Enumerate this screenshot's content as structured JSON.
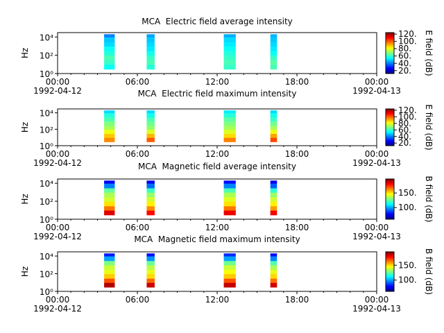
{
  "x_axis": {
    "xlim": [
      0,
      24
    ],
    "xticks": [
      {
        "value": 0,
        "label": "00:00"
      },
      {
        "value": 6,
        "label": "06:00"
      },
      {
        "value": 12,
        "label": "12:00"
      },
      {
        "value": 18,
        "label": "18:00"
      },
      {
        "value": 24,
        "label": "00:00"
      }
    ],
    "xminorticks": [
      1,
      2,
      3,
      4,
      5,
      7,
      8,
      9,
      10,
      11,
      13,
      14,
      15,
      16,
      17,
      19,
      20,
      21,
      22,
      23
    ],
    "date_labels": [
      {
        "value": 0,
        "label": "1992-04-12"
      },
      {
        "value": 24,
        "label": "1992-04-13"
      }
    ]
  },
  "chart_data": [
    {
      "type": "spectrogram",
      "title": "MCA  Electric field average intensity",
      "y_label": "Hz",
      "colorbar_label": "E field (dB)",
      "log_y": true,
      "colormap": "jet",
      "ylim": [
        1,
        30000
      ],
      "yticks": [
        {
          "value": 1,
          "label": "10⁰"
        },
        {
          "value": 100,
          "label": "10²"
        },
        {
          "value": 10000,
          "label": "10⁴"
        }
      ],
      "clim": [
        12,
        124
      ],
      "cticks": [
        {
          "value": 20,
          "label": "20."
        },
        {
          "value": 40,
          "label": "40."
        },
        {
          "value": 60,
          "label": "60."
        },
        {
          "value": 80,
          "label": "80."
        },
        {
          "value": 100,
          "label": "100."
        },
        {
          "value": 120,
          "label": "120."
        }
      ],
      "freq_edges": [
        3,
        10,
        30,
        100,
        300,
        1000,
        3000,
        10000,
        20000
      ],
      "blocks": [
        {
          "start": 3.5,
          "end": 4.3,
          "values": [
            55,
            60,
            62,
            58,
            55,
            50,
            48,
            40
          ]
        },
        {
          "start": 6.7,
          "end": 7.3,
          "values": [
            58,
            62,
            60,
            56,
            52,
            50,
            48,
            44
          ]
        },
        {
          "start": 12.5,
          "end": 13.4,
          "values": [
            60,
            62,
            60,
            58,
            55,
            52,
            50,
            45
          ]
        },
        {
          "start": 16.0,
          "end": 16.5,
          "values": [
            62,
            64,
            60,
            55,
            52,
            50,
            48,
            46
          ]
        }
      ]
    },
    {
      "type": "spectrogram",
      "title": "MCA  Electric field maximum intensity",
      "y_label": "Hz",
      "colorbar_label": "E field (dB)",
      "log_y": true,
      "colormap": "jet",
      "ylim": [
        1,
        30000
      ],
      "yticks": [
        {
          "value": 1,
          "label": "10⁰"
        },
        {
          "value": 100,
          "label": "10²"
        },
        {
          "value": 10000,
          "label": "10⁴"
        }
      ],
      "clim": [
        12,
        124
      ],
      "cticks": [
        {
          "value": 20,
          "label": "20."
        },
        {
          "value": 40,
          "label": "40."
        },
        {
          "value": 60,
          "label": "60."
        },
        {
          "value": 80,
          "label": "80."
        },
        {
          "value": 100,
          "label": "100."
        },
        {
          "value": 120,
          "label": "120."
        }
      ],
      "freq_edges": [
        3,
        10,
        30,
        100,
        300,
        1000,
        3000,
        10000,
        20000
      ],
      "blocks": [
        {
          "start": 3.5,
          "end": 4.3,
          "values": [
            95,
            88,
            80,
            72,
            68,
            62,
            58,
            50
          ]
        },
        {
          "start": 6.7,
          "end": 7.3,
          "values": [
            100,
            90,
            78,
            70,
            66,
            62,
            56,
            50
          ]
        },
        {
          "start": 12.5,
          "end": 13.4,
          "values": [
            96,
            86,
            78,
            72,
            68,
            64,
            58,
            52
          ]
        },
        {
          "start": 16.0,
          "end": 16.5,
          "values": [
            102,
            92,
            80,
            72,
            66,
            60,
            56,
            50
          ]
        }
      ]
    },
    {
      "type": "spectrogram",
      "title": "MCA  Magnetic field average intensity",
      "y_label": "Hz",
      "colorbar_label": "B field (dB)",
      "log_y": true,
      "colormap": "jet",
      "ylim": [
        1,
        30000
      ],
      "yticks": [
        {
          "value": 1,
          "label": "10⁰"
        },
        {
          "value": 100,
          "label": "10²"
        },
        {
          "value": 10000,
          "label": "10⁴"
        }
      ],
      "clim": [
        60,
        198
      ],
      "cticks": [
        {
          "value": 100,
          "label": "100."
        },
        {
          "value": 150,
          "label": "150."
        }
      ],
      "freq_edges": [
        3,
        10,
        30,
        100,
        300,
        1000,
        3000,
        10000,
        20000
      ],
      "blocks": [
        {
          "start": 3.5,
          "end": 4.3,
          "values": [
            185,
            165,
            150,
            140,
            135,
            125,
            95,
            75
          ]
        },
        {
          "start": 6.7,
          "end": 7.3,
          "values": [
            180,
            162,
            148,
            140,
            132,
            120,
            92,
            75
          ]
        },
        {
          "start": 12.5,
          "end": 13.4,
          "values": [
            183,
            165,
            150,
            142,
            135,
            122,
            95,
            78
          ]
        },
        {
          "start": 16.0,
          "end": 16.5,
          "values": [
            182,
            160,
            148,
            140,
            132,
            118,
            90,
            75
          ]
        }
      ]
    },
    {
      "type": "spectrogram",
      "title": "MCA  Magnetic field maximum intensity",
      "y_label": "Hz",
      "colorbar_label": "B field (dB)",
      "log_y": true,
      "colormap": "jet",
      "ylim": [
        1,
        30000
      ],
      "yticks": [
        {
          "value": 1,
          "label": "10⁰"
        },
        {
          "value": 100,
          "label": "10²"
        },
        {
          "value": 10000,
          "label": "10⁴"
        }
      ],
      "clim": [
        62,
        195
      ],
      "cticks": [
        {
          "value": 100,
          "label": "100."
        },
        {
          "value": 150,
          "label": "150."
        }
      ],
      "freq_edges": [
        3,
        10,
        30,
        100,
        300,
        1000,
        3000,
        10000,
        20000
      ],
      "blocks": [
        {
          "start": 3.5,
          "end": 4.3,
          "values": [
            188,
            168,
            152,
            142,
            138,
            128,
            100,
            82
          ]
        },
        {
          "start": 6.7,
          "end": 7.3,
          "values": [
            185,
            165,
            150,
            142,
            136,
            125,
            98,
            80
          ]
        },
        {
          "start": 12.5,
          "end": 13.4,
          "values": [
            186,
            168,
            152,
            144,
            138,
            126,
            100,
            84
          ]
        },
        {
          "start": 16.0,
          "end": 16.5,
          "values": [
            184,
            164,
            150,
            142,
            134,
            122,
            96,
            80
          ]
        }
      ]
    }
  ]
}
